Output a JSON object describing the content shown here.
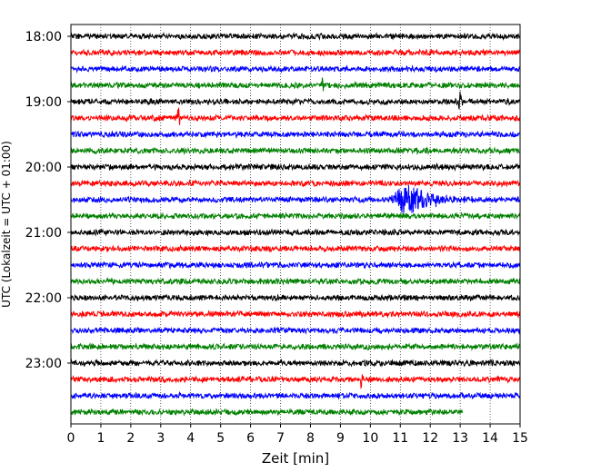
{
  "chart_data": {
    "type": "line",
    "title": "",
    "xlabel": "Zeit  [min]",
    "ylabel": "UTC (Lokalzeit = UTC + 01:00)",
    "xlim": [
      0,
      15
    ],
    "x_ticks": [
      "0",
      "1",
      "2",
      "3",
      "4",
      "5",
      "6",
      "7",
      "8",
      "9",
      "10",
      "11",
      "12",
      "13",
      "14",
      "15"
    ],
    "y_tick_labels": [
      "18:00",
      "19:00",
      "20:00",
      "21:00",
      "22:00",
      "23:00"
    ],
    "grid": "vertical dotted",
    "trace_interval_min": 15,
    "start_time": "18:00",
    "trace_colors": [
      "#000000",
      "#ff0000",
      "#0000ff",
      "#008000"
    ],
    "traces_count": 24,
    "last_trace_end_min": 13.1,
    "events": [
      {
        "trace_start": "18:45",
        "time_min": 8.4,
        "amplitude": "small"
      },
      {
        "trace_start": "19:00",
        "time_min": 13.0,
        "amplitude": "small"
      },
      {
        "trace_start": "19:15",
        "time_min": 3.6,
        "amplitude": "small"
      },
      {
        "trace_start": "20:30",
        "time_min": 11.2,
        "amplitude": "large"
      },
      {
        "trace_start": "23:15",
        "time_min": 9.7,
        "amplitude": "small"
      }
    ]
  }
}
